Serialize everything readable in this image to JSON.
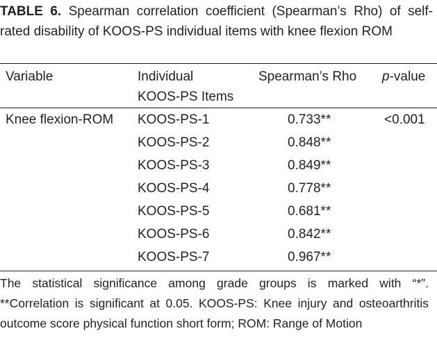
{
  "caption": {
    "label": "TABLE 6.",
    "text": "Spearman correlation coefficient (Spearman’s Rho) of self-rated disability of KOOS-PS individual items with knee flexion ROM"
  },
  "headers": {
    "variable": "Variable",
    "items_line1": "Individual",
    "items_line2": "KOOS-PS Items",
    "rho": "Spearman’s Rho",
    "p_italic": "p",
    "p_rest": "-value"
  },
  "variable": "Knee flexion-ROM",
  "p_value": "<0.001",
  "rows": [
    {
      "item": "KOOS-PS-1",
      "rho": "0.733**"
    },
    {
      "item": "KOOS-PS-2",
      "rho": "0.848**"
    },
    {
      "item": "KOOS-PS-3",
      "rho": "0.849**"
    },
    {
      "item": "KOOS-PS-4",
      "rho": "0.778**"
    },
    {
      "item": "KOOS-PS-5",
      "rho": "0.681**"
    },
    {
      "item": "KOOS-PS-6",
      "rho": "0.842**"
    },
    {
      "item": "KOOS-PS-7",
      "rho": "0.967**"
    }
  ],
  "footnote": "The statistical significance among grade groups is marked with “*”. **Correlation is significant at 0.05. KOOS-PS: Knee injury and osteoarthritis outcome score physical function short form; ROM: Range of Motion"
}
